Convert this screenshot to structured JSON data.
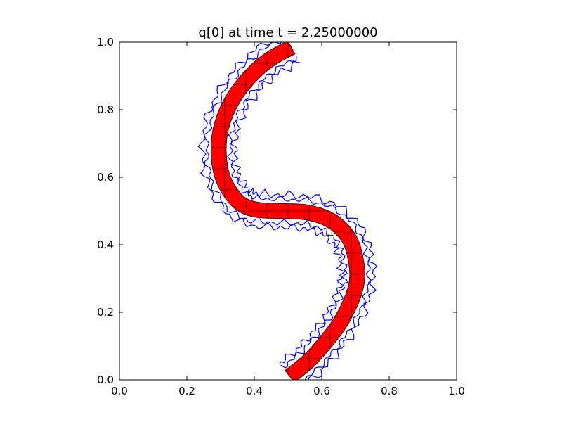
{
  "chart_data": {
    "type": "line",
    "title": "q[0] at time t =     2.25000000",
    "xlabel": "",
    "ylabel": "",
    "xlim": [
      0.0,
      1.0
    ],
    "ylim": [
      0.0,
      1.0
    ],
    "xticks": [
      0.0,
      0.2,
      0.4,
      0.6,
      0.8,
      1.0
    ],
    "yticks": [
      0.0,
      0.2,
      0.4,
      0.6,
      0.8,
      1.0
    ],
    "xtick_labels": [
      "0.0",
      "0.2",
      "0.4",
      "0.6",
      "0.8",
      "1.0"
    ],
    "ytick_labels": [
      "0.0",
      "0.2",
      "0.4",
      "0.6",
      "0.8",
      "1.0"
    ],
    "grid": false,
    "aspect": "equal",
    "filled_region": {
      "color": "#ff0000",
      "description_free": true,
      "centerline": [
        [
          0.505,
          0.01
        ],
        [
          0.56,
          0.055
        ],
        [
          0.61,
          0.11
        ],
        [
          0.655,
          0.17
        ],
        [
          0.69,
          0.24
        ],
        [
          0.705,
          0.3
        ],
        [
          0.7,
          0.36
        ],
        [
          0.68,
          0.42
        ],
        [
          0.63,
          0.47
        ],
        [
          0.56,
          0.495
        ],
        [
          0.48,
          0.5
        ],
        [
          0.4,
          0.505
        ],
        [
          0.35,
          0.53
        ],
        [
          0.31,
          0.59
        ],
        [
          0.295,
          0.66
        ],
        [
          0.3,
          0.74
        ],
        [
          0.33,
          0.82
        ],
        [
          0.38,
          0.89
        ],
        [
          0.44,
          0.945
        ],
        [
          0.51,
          0.985
        ]
      ],
      "width": 0.045
    },
    "contours": {
      "color": "#0000ff",
      "series": [
        {
          "offset": -0.035,
          "wobble": 0.006
        },
        {
          "offset": 0.035,
          "wobble": 0.007
        },
        {
          "offset": -0.048,
          "wobble": 0.009
        },
        {
          "offset": 0.048,
          "wobble": 0.008
        }
      ]
    },
    "mesh_lines": {
      "color": "#000000",
      "spacing": 0.0625
    }
  }
}
